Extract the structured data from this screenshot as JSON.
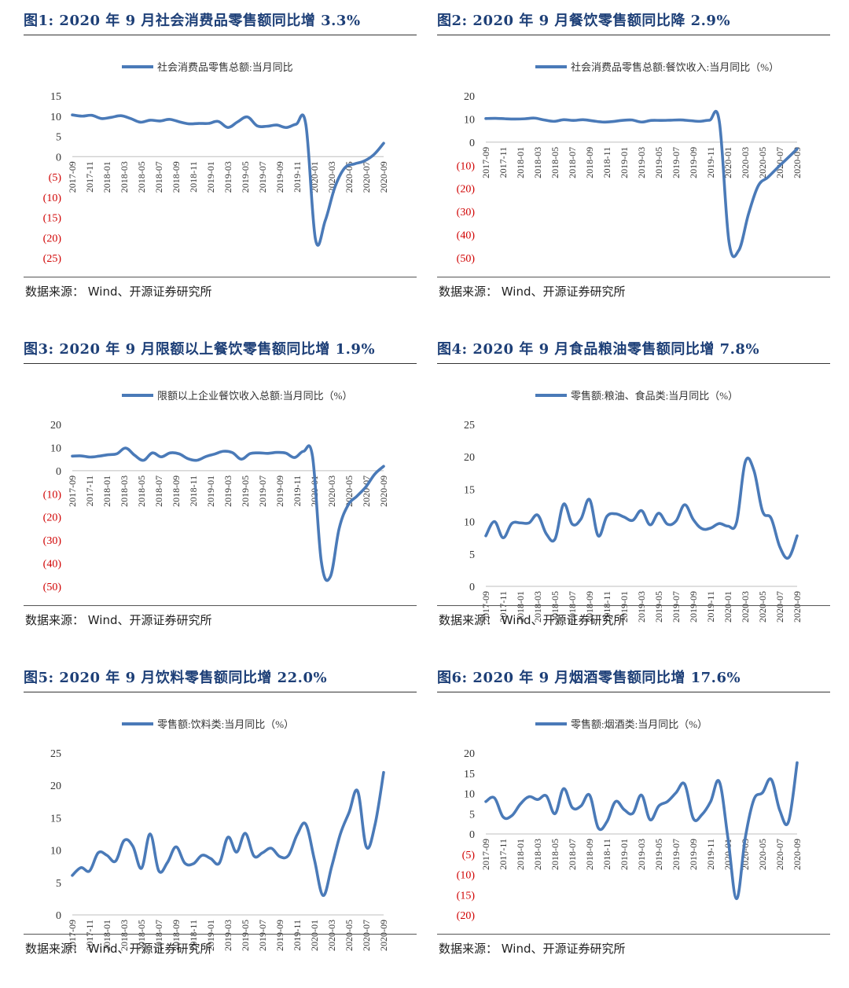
{
  "source_note": "数据来源：  Wind、开源证券研究所",
  "colors": {
    "line": "#4a7ab8",
    "negative_label": "#d00000",
    "title": "#1d3f77"
  },
  "chart_data": [
    {
      "type": "line",
      "title": "图1:  2020 年 9 月社会消费品零售额同比增 3.3%",
      "legend": "社会消费品零售总额:当月同比",
      "ylim": [
        -25,
        15
      ],
      "yticks": [
        15,
        10,
        5,
        0,
        -5,
        -10,
        -15,
        -20,
        -25
      ],
      "ytick_labels": [
        "15",
        "10",
        "5",
        "0",
        "(5)",
        "(10)",
        "(15)",
        "(20)",
        "(25)"
      ],
      "x_tick_labels": [
        "2017-09",
        "2017-11",
        "2018-01",
        "2018-03",
        "2018-05",
        "2018-07",
        "2018-09",
        "2018-11",
        "2019-01",
        "2019-03",
        "2019-05",
        "2019-07",
        "2019-09",
        "2019-11",
        "2020-01",
        "2020-03",
        "2020-05",
        "2020-07",
        "2020-09"
      ],
      "values": [
        10.3,
        10.0,
        10.2,
        9.4,
        9.7,
        10.1,
        9.4,
        8.5,
        9.0,
        8.8,
        9.2,
        8.6,
        8.1,
        8.2,
        8.2,
        8.7,
        7.2,
        8.6,
        9.8,
        7.6,
        7.5,
        7.8,
        7.2,
        8.0,
        8.0,
        -20.5,
        -15.8,
        -7.5,
        -2.8,
        -1.8,
        -1.1,
        0.5,
        3.3
      ]
    },
    {
      "type": "line",
      "title": "图2:  2020 年 9 月餐饮零售额同比降 2.9%",
      "legend": "社会消费品零售总额:餐饮收入:当月同比（%）",
      "ylim": [
        -50,
        20
      ],
      "yticks": [
        20,
        10,
        0,
        -10,
        -20,
        -30,
        -40,
        -50
      ],
      "ytick_labels": [
        "20",
        "10",
        "0",
        "(10)",
        "(20)",
        "(30)",
        "(40)",
        "(50)"
      ],
      "x_tick_labels": [
        "2017-09",
        "2017-11",
        "2018-01",
        "2018-03",
        "2018-05",
        "2018-07",
        "2018-09",
        "2018-11",
        "2019-01",
        "2019-03",
        "2019-05",
        "2019-07",
        "2019-09",
        "2019-11",
        "2020-01",
        "2020-03",
        "2020-05",
        "2020-07",
        "2020-09"
      ],
      "values": [
        10.2,
        10.3,
        10.1,
        10.0,
        10.1,
        10.4,
        9.6,
        9.0,
        9.7,
        9.4,
        9.7,
        9.2,
        8.7,
        8.9,
        9.4,
        9.6,
        8.7,
        9.4,
        9.4,
        9.5,
        9.6,
        9.3,
        9.0,
        9.5,
        9.0,
        -43.1,
        -46.8,
        -31.1,
        -18.9,
        -15.2,
        -11.0,
        -7.0,
        -2.9
      ]
    },
    {
      "type": "line",
      "title": "图3:  2020 年 9 月限额以上餐饮零售额同比增 1.9%",
      "legend": "限额以上企业餐饮收入总额:当月同比（%）",
      "ylim": [
        -50,
        20
      ],
      "yticks": [
        20,
        10,
        0,
        -10,
        -20,
        -30,
        -40,
        -50
      ],
      "ytick_labels": [
        "20",
        "10",
        "0",
        "(10)",
        "(20)",
        "(30)",
        "(40)",
        "(50)"
      ],
      "x_tick_labels": [
        "2017-09",
        "2017-11",
        "2018-01",
        "2018-03",
        "2018-05",
        "2018-07",
        "2018-09",
        "2018-11",
        "2019-01",
        "2019-03",
        "2019-05",
        "2019-07",
        "2019-09",
        "2019-11",
        "2020-01",
        "2020-03",
        "2020-05",
        "2020-07",
        "2020-09"
      ],
      "values": [
        6.3,
        6.4,
        5.9,
        6.3,
        6.9,
        7.3,
        9.8,
        6.7,
        4.5,
        7.7,
        6.0,
        7.7,
        7.3,
        5.2,
        4.5,
        6.1,
        7.2,
        8.4,
        7.8,
        5.0,
        7.4,
        7.7,
        7.5,
        7.9,
        7.6,
        5.7,
        8.4,
        6.3,
        -39.4,
        -45.9,
        -25.0,
        -14.9,
        -11.0,
        -7.0,
        -1.5,
        1.9
      ]
    },
    {
      "type": "line",
      "title": "图4:  2020 年 9 月食品粮油零售额同比增 7.8%",
      "legend": "零售额:粮油、食品类:当月同比（%）",
      "ylim": [
        0,
        25
      ],
      "yticks": [
        25,
        20,
        15,
        10,
        5,
        0
      ],
      "ytick_labels": [
        "25",
        "20",
        "15",
        "10",
        "5",
        "0"
      ],
      "x_tick_labels": [
        "2017-09",
        "2017-11",
        "2018-01",
        "2018-03",
        "2018-05",
        "2018-07",
        "2018-09",
        "2018-11",
        "2019-01",
        "2019-03",
        "2019-05",
        "2019-07",
        "2019-09",
        "2019-11",
        "2020-01",
        "2020-03",
        "2020-05",
        "2020-07",
        "2020-09"
      ],
      "values": [
        7.8,
        10.0,
        7.5,
        9.7,
        9.8,
        9.8,
        11.0,
        8.1,
        7.3,
        12.7,
        9.6,
        10.4,
        13.4,
        7.8,
        10.8,
        11.2,
        10.7,
        10.2,
        11.7,
        9.5,
        11.3,
        9.6,
        10.1,
        12.6,
        10.3,
        8.9,
        9.0,
        9.7,
        9.3,
        9.9,
        19.2,
        17.9,
        11.6,
        10.5,
        6.1,
        4.4,
        7.8
      ]
    },
    {
      "type": "line",
      "title": "图5:  2020 年 9 月饮料零售额同比增 22.0%",
      "legend": "零售额:饮料类:当月同比（%）",
      "ylim": [
        0,
        25
      ],
      "yticks": [
        25,
        20,
        15,
        10,
        5,
        0
      ],
      "ytick_labels": [
        "25",
        "20",
        "15",
        "10",
        "5",
        "0"
      ],
      "x_tick_labels": [
        "2017-09",
        "2017-11",
        "2018-01",
        "2018-03",
        "2018-05",
        "2018-07",
        "2018-09",
        "2018-11",
        "2019-01",
        "2019-03",
        "2019-05",
        "2019-07",
        "2019-09",
        "2019-11",
        "2020-01",
        "2020-03",
        "2020-05",
        "2020-07",
        "2020-09"
      ],
      "values": [
        6.1,
        7.3,
        6.8,
        9.6,
        9.2,
        8.3,
        11.5,
        10.6,
        7.2,
        12.5,
        6.8,
        8.1,
        10.5,
        8.0,
        7.9,
        9.2,
        8.7,
        8.0,
        12.0,
        9.7,
        12.6,
        9.1,
        9.6,
        10.3,
        9.0,
        9.2,
        12.4,
        14.0,
        8.5,
        3.0,
        7.5,
        12.5,
        15.8,
        19.1,
        10.5,
        13.9,
        22.0
      ]
    },
    {
      "type": "line",
      "title": "图6:  2020 年 9 月烟酒零售额同比增 17.6%",
      "legend": "零售额:烟酒类:当月同比（%）",
      "ylim": [
        -20,
        20
      ],
      "yticks": [
        20,
        15,
        10,
        5,
        0,
        -5,
        -10,
        -15,
        -20
      ],
      "ytick_labels": [
        "20",
        "15",
        "10",
        "5",
        "0",
        "(5)",
        "(10)",
        "(15)",
        "(20)"
      ],
      "x_tick_labels": [
        "2017-09",
        "2017-11",
        "2018-01",
        "2018-03",
        "2018-05",
        "2018-07",
        "2018-09",
        "2018-11",
        "2019-01",
        "2019-03",
        "2019-05",
        "2019-07",
        "2019-09",
        "2019-11",
        "2020-01",
        "2020-03",
        "2020-05",
        "2020-07",
        "2020-09"
      ],
      "values": [
        8.0,
        8.9,
        4.2,
        4.5,
        7.4,
        9.2,
        8.5,
        9.4,
        5.0,
        11.2,
        6.5,
        6.9,
        9.6,
        1.5,
        3.0,
        8.0,
        6.0,
        5.1,
        9.6,
        3.5,
        6.9,
        8.0,
        10.2,
        12.3,
        3.8,
        4.8,
        8.0,
        12.9,
        -1.0,
        -16.0,
        -1.0,
        8.5,
        10.2,
        13.5,
        5.8,
        3.0,
        17.6
      ]
    }
  ]
}
